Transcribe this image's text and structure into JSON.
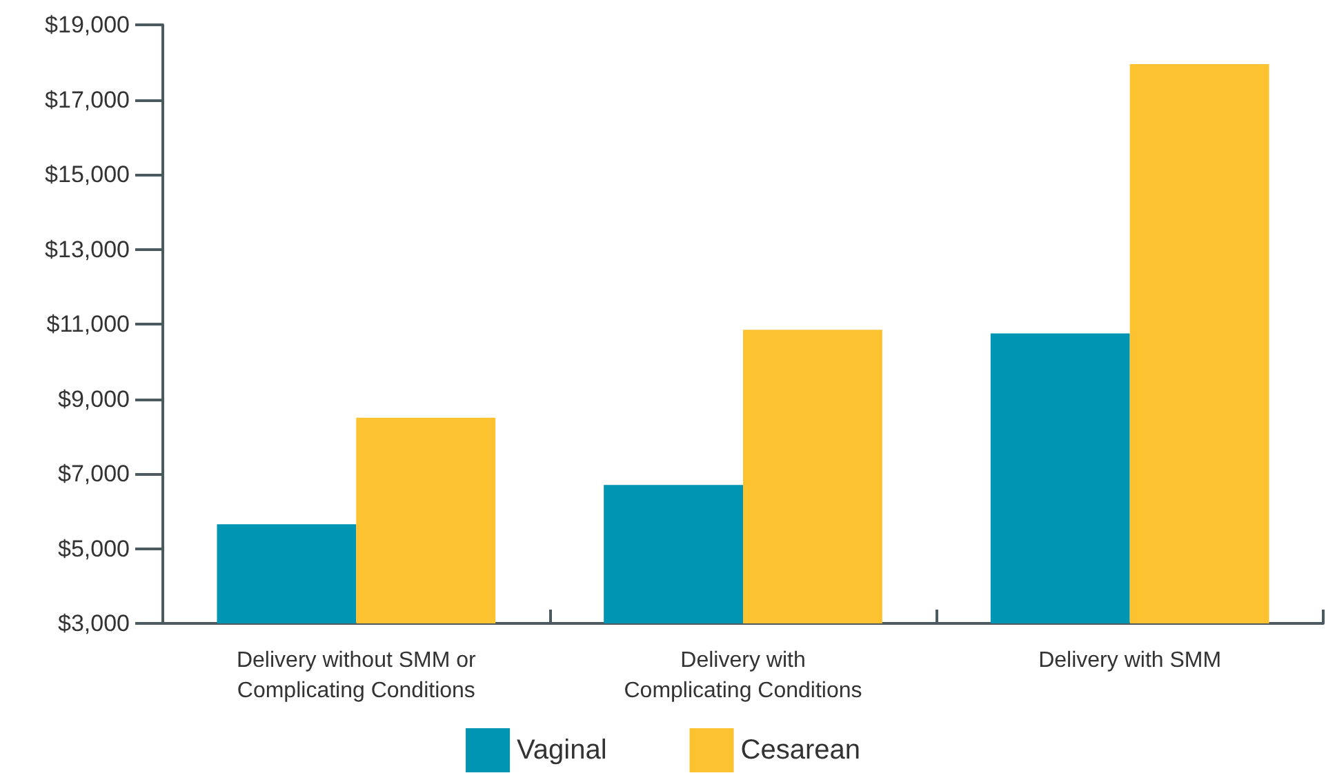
{
  "chart_data": {
    "type": "bar",
    "categories": [
      "Delivery without SMM or\nComplicating Conditions",
      "Delivery with\nComplicating Conditions",
      "Delivery with SMM"
    ],
    "series": [
      {
        "name": "Vaginal",
        "color": "#0095b3",
        "values": [
          5650,
          6700,
          10750
        ]
      },
      {
        "name": "Cesarean",
        "color": "#fcc22f",
        "values": [
          8500,
          10850,
          17950
        ]
      }
    ],
    "ylim": [
      3000,
      19000
    ],
    "yticks": [
      {
        "value": 3000,
        "label": "$3,000"
      },
      {
        "value": 5000,
        "label": "$5,000"
      },
      {
        "value": 7000,
        "label": "$7,000"
      },
      {
        "value": 9000,
        "label": "$9,000"
      },
      {
        "value": 11000,
        "label": "$11,000"
      },
      {
        "value": 13000,
        "label": "$13,000"
      },
      {
        "value": 15000,
        "label": "$15,000"
      },
      {
        "value": 17000,
        "label": "$17,000"
      },
      {
        "value": 19000,
        "label": "$19,000"
      }
    ],
    "grid": false,
    "legend": "bottom"
  }
}
